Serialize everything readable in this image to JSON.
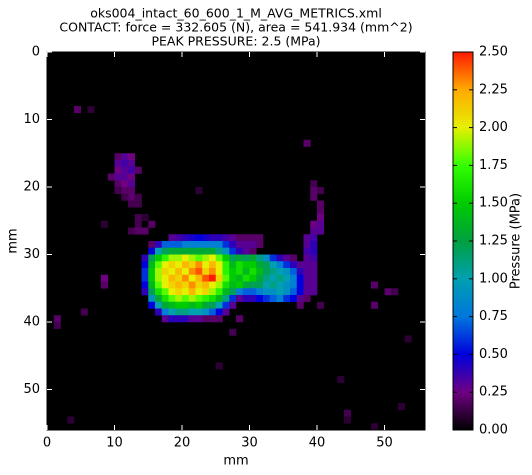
{
  "chart_data": {
    "type": "heatmap",
    "title": [
      "oks004_intact_60_600_1_M_AVG_METRICS.xml",
      "CONTACT: force = 332.605 (N), area = 541.934 (mm^2)",
      "PEAK PRESSURE: 2.5 (MPa)"
    ],
    "x_label": "mm",
    "y_label": "mm",
    "colorbar_label": "Pressure (MPa)",
    "xlim": [
      0,
      56
    ],
    "ylim": [
      56,
      0
    ],
    "xticks": [
      0,
      10,
      20,
      30,
      40,
      50
    ],
    "yticks": [
      0,
      10,
      20,
      30,
      40,
      50
    ],
    "clim": [
      0,
      2.5
    ],
    "colorbar_ticks": [
      {
        "value": 0,
        "label": "0.00"
      },
      {
        "value": 0.25,
        "label": "0.25"
      },
      {
        "value": 0.5,
        "label": "0.50"
      },
      {
        "value": 0.75,
        "label": "0.75"
      },
      {
        "value": 1,
        "label": "1.00"
      },
      {
        "value": 1.25,
        "label": "1.25"
      },
      {
        "value": 1.5,
        "label": "1.50"
      },
      {
        "value": 1.75,
        "label": "1.75"
      },
      {
        "value": 2,
        "label": "2.00"
      },
      {
        "value": 2.25,
        "label": "2.25"
      },
      {
        "value": 2.5,
        "label": "2.50"
      }
    ],
    "colormap": [
      "#000000",
      "#6f0082",
      "#0000dd",
      "#0077dd",
      "#00a0b0",
      "#00a040",
      "#00cc00",
      "#33ff00",
      "#e6f000",
      "#ffaa00",
      "#ff1a00"
    ],
    "background": "#000000",
    "rows": [
      {
        "y": 8,
        "x": [
          4,
          6
        ],
        "values": [
          0.2,
          0.1
        ]
      },
      {
        "y": 13,
        "x": [
          38
        ],
        "values": [
          0.2
        ]
      },
      {
        "y": 15,
        "x": [
          10,
          11,
          12
        ],
        "values": [
          0.2,
          0.3,
          0.25
        ]
      },
      {
        "y": 16,
        "x": [
          10,
          11,
          12
        ],
        "values": [
          0.3,
          0.35,
          0.3
        ]
      },
      {
        "y": 17,
        "x": [
          10,
          11,
          12,
          13
        ],
        "values": [
          0.25,
          0.3,
          0.35,
          0.2
        ]
      },
      {
        "y": 18,
        "x": [
          9,
          10,
          11,
          12
        ],
        "values": [
          0.2,
          0.3,
          0.3,
          0.25
        ]
      },
      {
        "y": 19,
        "x": [
          10,
          11,
          12,
          39
        ],
        "values": [
          0.2,
          0.25,
          0.3,
          0.15
        ]
      },
      {
        "y": 20,
        "x": [
          10,
          11,
          12,
          22,
          39,
          40
        ],
        "values": [
          0.15,
          0.2,
          0.2,
          0.1,
          0.2,
          0.15
        ]
      },
      {
        "y": 21,
        "x": [
          11,
          12,
          13,
          39
        ],
        "values": [
          0.15,
          0.2,
          0.15,
          0.2
        ]
      },
      {
        "y": 22,
        "x": [
          12,
          13,
          40
        ],
        "values": [
          0.15,
          0.15,
          0.2
        ]
      },
      {
        "y": 23,
        "x": [
          40
        ],
        "values": [
          0.2
        ]
      },
      {
        "y": 24,
        "x": [
          13,
          14,
          40
        ],
        "values": [
          0.15,
          0.1,
          0.25
        ]
      },
      {
        "y": 25,
        "x": [
          8,
          13,
          15,
          39,
          40
        ],
        "values": [
          0.1,
          0.15,
          0.2,
          0.25,
          0.3
        ]
      },
      {
        "y": 26,
        "x": [
          12,
          13,
          14,
          39,
          40
        ],
        "values": [
          0.15,
          0.2,
          0.2,
          0.3,
          0.3
        ]
      },
      {
        "y": 27,
        "x": [
          18,
          19,
          20,
          21,
          22,
          23,
          24,
          25,
          26,
          27,
          28,
          29,
          30,
          31,
          38,
          39
        ],
        "values": [
          0.3,
          0.35,
          0.4,
          0.45,
          0.5,
          0.45,
          0.4,
          0.4,
          0.35,
          0.3,
          0.2,
          0.2,
          0.2,
          0.2,
          0.3,
          0.35
        ]
      },
      {
        "y": 28,
        "x": [
          15,
          16,
          17,
          18,
          19,
          20,
          21,
          22,
          23,
          24,
          25,
          26,
          27,
          28,
          29,
          30,
          31,
          38,
          39
        ],
        "values": [
          0.2,
          0.4,
          0.7,
          0.7,
          0.7,
          0.8,
          0.8,
          0.8,
          0.8,
          0.8,
          0.8,
          0.6,
          0.4,
          0.3,
          0.3,
          0.3,
          0.2,
          0.3,
          0.4
        ]
      },
      {
        "y": 29,
        "x": [
          15,
          16,
          17,
          18,
          19,
          20,
          21,
          22,
          23,
          24,
          25,
          26,
          27,
          28,
          29,
          30,
          38,
          39
        ],
        "values": [
          0.5,
          1.0,
          1.2,
          1.3,
          1.3,
          1.3,
          1.3,
          1.3,
          1.3,
          1.3,
          1.1,
          0.9,
          0.6,
          0.4,
          0.3,
          0.2,
          0.35,
          0.4
        ]
      },
      {
        "y": 30,
        "x": [
          14,
          15,
          16,
          17,
          18,
          19,
          20,
          21,
          22,
          23,
          24,
          25,
          26,
          27,
          28,
          29,
          30,
          31,
          32,
          33,
          34,
          35,
          36,
          38,
          39
        ],
        "values": [
          0.4,
          1.2,
          1.5,
          1.7,
          1.9,
          1.9,
          2.0,
          1.9,
          1.8,
          1.9,
          2.0,
          1.8,
          1.5,
          1.2,
          1.3,
          1.2,
          1.3,
          1.1,
          0.9,
          0.6,
          0.4,
          0.3,
          0.2,
          0.3,
          0.35
        ]
      },
      {
        "y": 31,
        "x": [
          14,
          15,
          16,
          17,
          18,
          19,
          20,
          21,
          22,
          23,
          24,
          25,
          26,
          27,
          28,
          29,
          30,
          31,
          32,
          33,
          34,
          35,
          36,
          37,
          38,
          39
        ],
        "values": [
          0.5,
          1.4,
          1.8,
          2.0,
          2.1,
          2.0,
          2.2,
          2.1,
          2.3,
          2.0,
          2.2,
          2.0,
          1.7,
          1.4,
          1.6,
          1.5,
          1.5,
          1.3,
          1.2,
          1.0,
          0.8,
          0.6,
          0.4,
          0.3,
          0.3,
          0.3
        ]
      },
      {
        "y": 32,
        "x": [
          14,
          15,
          16,
          17,
          18,
          19,
          20,
          21,
          22,
          23,
          24,
          25,
          26,
          27,
          28,
          29,
          30,
          31,
          32,
          33,
          34,
          35,
          36,
          37,
          38,
          39
        ],
        "values": [
          0.6,
          1.5,
          1.9,
          2.1,
          2.0,
          2.2,
          2.0,
          2.3,
          2.4,
          2.1,
          2.3,
          2.0,
          1.7,
          1.5,
          1.6,
          1.4,
          1.6,
          1.4,
          1.2,
          1.1,
          1.0,
          0.9,
          0.7,
          0.4,
          0.3,
          0.3
        ]
      },
      {
        "y": 33,
        "x": [
          8,
          14,
          15,
          16,
          17,
          18,
          19,
          20,
          21,
          22,
          23,
          24,
          25,
          26,
          27,
          28,
          29,
          30,
          31,
          32,
          33,
          34,
          35,
          36,
          37,
          38,
          39
        ],
        "values": [
          0.25,
          0.6,
          1.5,
          1.9,
          2.0,
          2.2,
          2.1,
          2.3,
          2.0,
          2.2,
          2.4,
          2.5,
          2.1,
          1.8,
          1.5,
          1.4,
          1.6,
          1.5,
          1.3,
          1.1,
          1.0,
          1.1,
          1.0,
          0.8,
          0.5,
          0.3,
          0.3
        ]
      },
      {
        "y": 34,
        "x": [
          8,
          14,
          15,
          16,
          17,
          18,
          19,
          20,
          21,
          22,
          23,
          24,
          25,
          26,
          27,
          28,
          29,
          30,
          31,
          32,
          33,
          34,
          35,
          36,
          37,
          38,
          39,
          48
        ],
        "values": [
          0.2,
          0.5,
          1.4,
          1.8,
          2.0,
          2.1,
          2.2,
          2.1,
          2.3,
          2.1,
          2.2,
          2.0,
          1.9,
          1.6,
          1.4,
          1.5,
          1.3,
          1.2,
          1.2,
          1.0,
          1.1,
          1.0,
          0.9,
          0.8,
          0.5,
          0.3,
          0.3,
          0.2
        ]
      },
      {
        "y": 35,
        "x": [
          14,
          15,
          16,
          17,
          18,
          19,
          20,
          21,
          22,
          23,
          24,
          25,
          26,
          27,
          28,
          29,
          30,
          31,
          32,
          33,
          34,
          35,
          36,
          37,
          38,
          39,
          50,
          51
        ],
        "values": [
          0.4,
          1.2,
          1.6,
          1.8,
          2.0,
          2.1,
          2.0,
          2.2,
          2.0,
          2.1,
          1.9,
          1.7,
          1.4,
          1.2,
          0.8,
          0.7,
          0.7,
          0.8,
          0.9,
          0.9,
          1.0,
          0.9,
          0.7,
          0.5,
          0.3,
          0.3,
          0.2,
          0.15
        ]
      },
      {
        "y": 36,
        "x": [
          15,
          16,
          17,
          18,
          19,
          20,
          21,
          22,
          23,
          24,
          25,
          26,
          27,
          28,
          29,
          30,
          31,
          32,
          33,
          34,
          35,
          36,
          37,
          38
        ],
        "values": [
          0.9,
          1.3,
          1.6,
          1.8,
          1.9,
          1.8,
          1.9,
          1.8,
          1.7,
          1.6,
          1.4,
          1.1,
          0.6,
          0.3,
          0.4,
          0.4,
          0.5,
          0.6,
          0.7,
          0.8,
          0.6,
          0.5,
          0.3,
          0.2
        ]
      },
      {
        "y": 37,
        "x": [
          15,
          16,
          17,
          18,
          19,
          20,
          21,
          22,
          23,
          24,
          25,
          26,
          27,
          37,
          40,
          48
        ],
        "values": [
          0.5,
          1.0,
          1.3,
          1.4,
          1.5,
          1.5,
          1.4,
          1.5,
          1.3,
          1.2,
          1.0,
          0.6,
          0.3,
          0.2,
          0.15,
          0.2
        ]
      },
      {
        "y": 38,
        "x": [
          5,
          16,
          17,
          18,
          19,
          20,
          21,
          22,
          23,
          24,
          25,
          26
        ],
        "values": [
          0.15,
          0.4,
          0.8,
          1.0,
          1.1,
          1.1,
          1.0,
          1.0,
          0.9,
          0.7,
          0.5,
          0.3
        ]
      },
      {
        "y": 39,
        "x": [
          1,
          17,
          18,
          19,
          20,
          21,
          22,
          23,
          24,
          25,
          28
        ],
        "values": [
          0.2,
          0.3,
          0.4,
          0.4,
          0.4,
          0.3,
          0.3,
          0.2,
          0.2,
          0.2,
          0.2
        ]
      },
      {
        "y": 40,
        "x": [
          1
        ],
        "values": [
          0.15
        ]
      },
      {
        "y": 41,
        "x": [
          27
        ],
        "values": [
          0.15
        ]
      },
      {
        "y": 42,
        "x": [
          53
        ],
        "values": [
          0.1
        ]
      },
      {
        "y": 46,
        "x": [
          25
        ],
        "values": [
          0.1
        ]
      },
      {
        "y": 48,
        "x": [
          43
        ],
        "values": [
          0.1
        ]
      },
      {
        "y": 52,
        "x": [
          52
        ],
        "values": [
          0.1
        ]
      },
      {
        "y": 53,
        "x": [
          44
        ],
        "values": [
          0.15
        ]
      },
      {
        "y": 54,
        "x": [
          3,
          44
        ],
        "values": [
          0.1,
          0.1
        ]
      },
      {
        "y": 55,
        "x": [
          48
        ],
        "values": [
          0.1
        ]
      }
    ]
  }
}
